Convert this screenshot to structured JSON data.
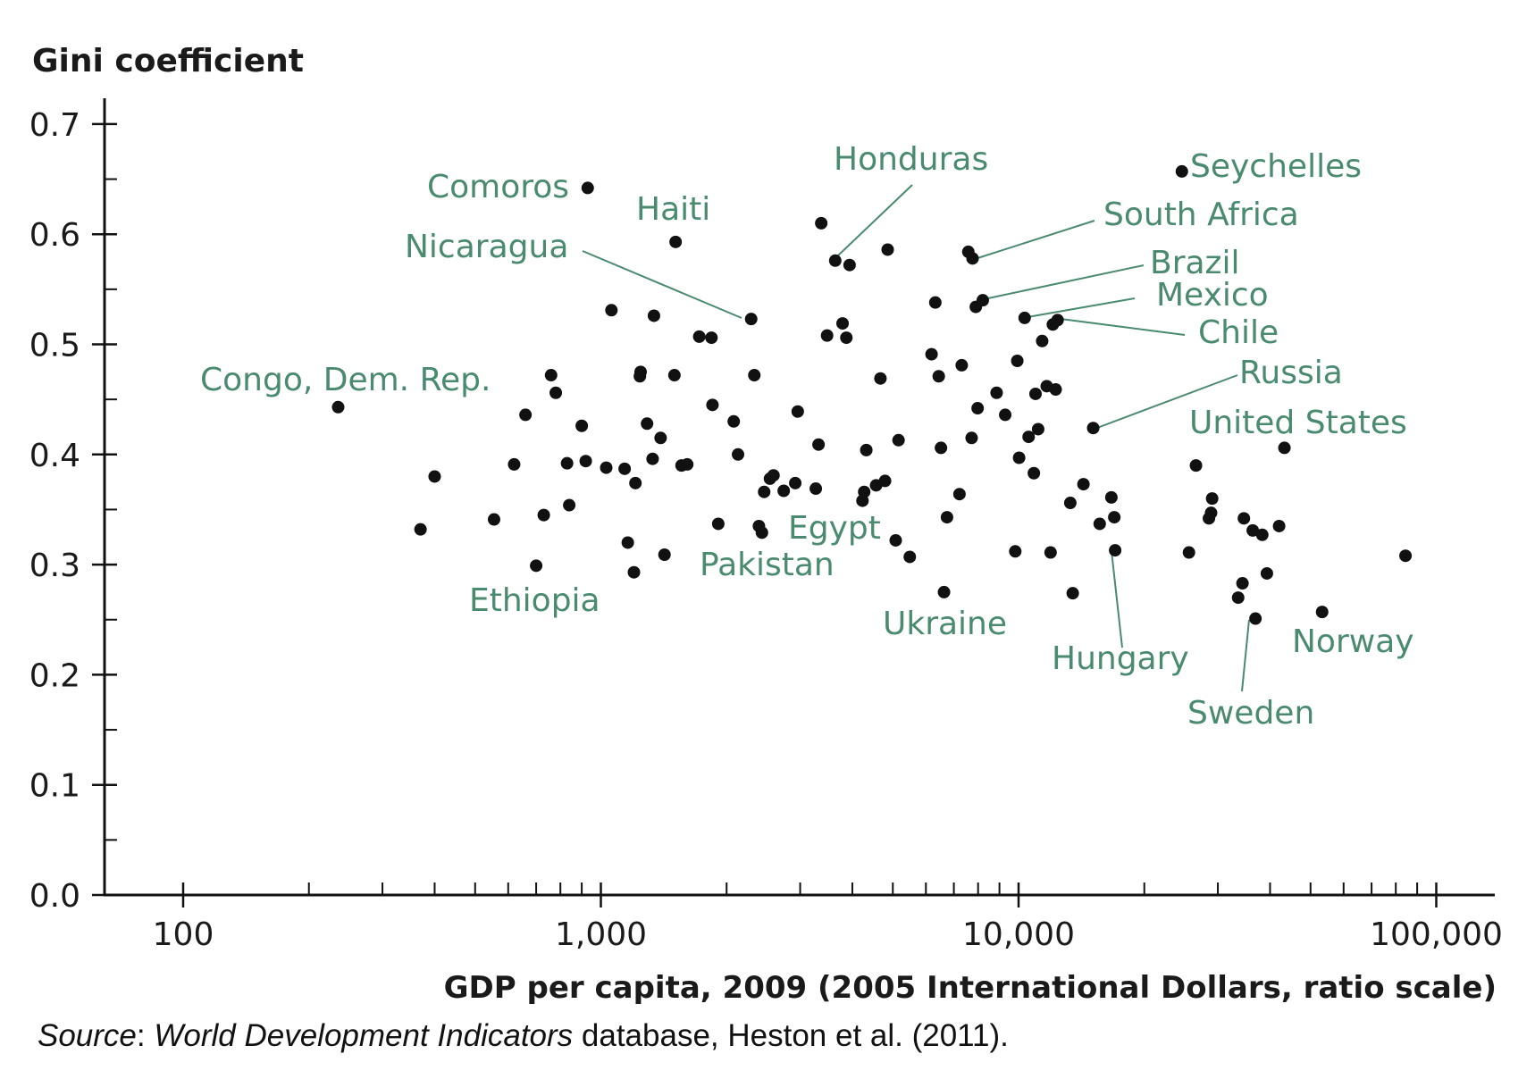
{
  "chart_data": {
    "type": "scatter",
    "title": "",
    "ylabel": "Gini coefficient",
    "xlabel": "GDP per capita, 2009 (2005 International Dollars, ratio scale)",
    "x_scale": "log",
    "xlim": [
      65,
      135000
    ],
    "ylim": [
      0,
      0.72
    ],
    "grid": false,
    "legend": "none",
    "x_ticks": [
      100,
      1000,
      10000,
      100000
    ],
    "x_tick_labels": [
      "100",
      "1,000",
      "10,000",
      "100,000"
    ],
    "y_ticks": [
      0.0,
      0.1,
      0.2,
      0.3,
      0.4,
      0.5,
      0.6,
      0.7
    ],
    "y_tick_labels": [
      "0.0",
      "0.1",
      "0.2",
      "0.3",
      "0.4",
      "0.5",
      "0.6",
      "0.7"
    ],
    "colors": {
      "point": "#111111",
      "label": "#4a8a6e",
      "axis": "#111111"
    },
    "points": [
      [
        235,
        0.443
      ],
      [
        370,
        0.332
      ],
      [
        400,
        0.38
      ],
      [
        555,
        0.341
      ],
      [
        620,
        0.391
      ],
      [
        660,
        0.436
      ],
      [
        700,
        0.299
      ],
      [
        730,
        0.345
      ],
      [
        760,
        0.472
      ],
      [
        780,
        0.456
      ],
      [
        830,
        0.392
      ],
      [
        840,
        0.354
      ],
      [
        900,
        0.426
      ],
      [
        920,
        0.394
      ],
      [
        930,
        0.642
      ],
      [
        1030,
        0.388
      ],
      [
        1060,
        0.531
      ],
      [
        1140,
        0.387
      ],
      [
        1160,
        0.32
      ],
      [
        1200,
        0.293
      ],
      [
        1210,
        0.374
      ],
      [
        1240,
        0.471
      ],
      [
        1245,
        0.475
      ],
      [
        1290,
        0.428
      ],
      [
        1330,
        0.396
      ],
      [
        1340,
        0.526
      ],
      [
        1390,
        0.415
      ],
      [
        1420,
        0.309
      ],
      [
        1500,
        0.472
      ],
      [
        1510,
        0.593
      ],
      [
        1560,
        0.39
      ],
      [
        1610,
        0.391
      ],
      [
        1720,
        0.507
      ],
      [
        1840,
        0.506
      ],
      [
        1850,
        0.445
      ],
      [
        1910,
        0.337
      ],
      [
        2080,
        0.43
      ],
      [
        2130,
        0.4
      ],
      [
        2290,
        0.523
      ],
      [
        2330,
        0.472
      ],
      [
        2390,
        0.335
      ],
      [
        2430,
        0.329
      ],
      [
        2460,
        0.366
      ],
      [
        2540,
        0.378
      ],
      [
        2590,
        0.381
      ],
      [
        2740,
        0.367
      ],
      [
        2920,
        0.374
      ],
      [
        2960,
        0.439
      ],
      [
        3270,
        0.369
      ],
      [
        3320,
        0.409
      ],
      [
        3370,
        0.61
      ],
      [
        3480,
        0.508
      ],
      [
        3640,
        0.576
      ],
      [
        3790,
        0.519
      ],
      [
        3870,
        0.506
      ],
      [
        3940,
        0.572
      ],
      [
        4230,
        0.358
      ],
      [
        4270,
        0.366
      ],
      [
        4320,
        0.404
      ],
      [
        4560,
        0.372
      ],
      [
        4670,
        0.469
      ],
      [
        4790,
        0.376
      ],
      [
        4860,
        0.586
      ],
      [
        5080,
        0.322
      ],
      [
        5160,
        0.413
      ],
      [
        5490,
        0.307
      ],
      [
        6190,
        0.491
      ],
      [
        6320,
        0.538
      ],
      [
        6440,
        0.471
      ],
      [
        6520,
        0.406
      ],
      [
        6630,
        0.275
      ],
      [
        6740,
        0.343
      ],
      [
        7220,
        0.364
      ],
      [
        7310,
        0.481
      ],
      [
        7580,
        0.584
      ],
      [
        7720,
        0.415
      ],
      [
        7760,
        0.578
      ],
      [
        7900,
        0.534
      ],
      [
        7980,
        0.442
      ],
      [
        8210,
        0.54
      ],
      [
        8860,
        0.456
      ],
      [
        9290,
        0.436
      ],
      [
        9820,
        0.312
      ],
      [
        9930,
        0.485
      ],
      [
        10030,
        0.397
      ],
      [
        10340,
        0.524
      ],
      [
        10570,
        0.416
      ],
      [
        10880,
        0.383
      ],
      [
        10980,
        0.455
      ],
      [
        11140,
        0.423
      ],
      [
        11390,
        0.503
      ],
      [
        11680,
        0.462
      ],
      [
        11930,
        0.311
      ],
      [
        12080,
        0.518
      ],
      [
        12270,
        0.459
      ],
      [
        12400,
        0.522
      ],
      [
        13300,
        0.356
      ],
      [
        13480,
        0.274
      ],
      [
        14300,
        0.373
      ],
      [
        15090,
        0.424
      ],
      [
        15640,
        0.337
      ],
      [
        16680,
        0.361
      ],
      [
        16950,
        0.343
      ],
      [
        17030,
        0.313
      ],
      [
        25580,
        0.311
      ],
      [
        26590,
        0.39
      ],
      [
        28560,
        0.342
      ],
      [
        28900,
        0.347
      ],
      [
        29070,
        0.36
      ],
      [
        33550,
        0.27
      ],
      [
        34360,
        0.283
      ],
      [
        34630,
        0.342
      ],
      [
        36360,
        0.331
      ],
      [
        36910,
        0.251
      ],
      [
        38320,
        0.327
      ],
      [
        39310,
        0.292
      ],
      [
        42050,
        0.335
      ],
      [
        43300,
        0.406
      ],
      [
        53300,
        0.257
      ],
      [
        84400,
        0.308
      ],
      [
        24600,
        0.657
      ]
    ],
    "annotations": [
      {
        "label": "Comoros",
        "x": 930,
        "y": 0.642
      },
      {
        "label": "Haiti",
        "x": 1510,
        "y": 0.593
      },
      {
        "label": "Nicaragua",
        "x": 2290,
        "y": 0.523
      },
      {
        "label": "Honduras",
        "x": 3640,
        "y": 0.576
      },
      {
        "label": "Seychelles",
        "x": 24600,
        "y": 0.657
      },
      {
        "label": "South Africa",
        "x": 7760,
        "y": 0.578
      },
      {
        "label": "Brazil",
        "x": 8210,
        "y": 0.54
      },
      {
        "label": "Mexico",
        "x": 10340,
        "y": 0.524
      },
      {
        "label": "Chile",
        "x": 12400,
        "y": 0.522
      },
      {
        "label": "Russia",
        "x": 15090,
        "y": 0.424
      },
      {
        "label": "United States",
        "x": 43300,
        "y": 0.406
      },
      {
        "label": "Congo, Dem. Rep.",
        "x": 235,
        "y": 0.443
      },
      {
        "label": "Egypt",
        "x": 4790,
        "y": 0.376
      },
      {
        "label": "Pakistan",
        "x": 2430,
        "y": 0.329
      },
      {
        "label": "Ethiopia",
        "x": 700,
        "y": 0.299
      },
      {
        "label": "Ukraine",
        "x": 6630,
        "y": 0.275
      },
      {
        "label": "Hungary",
        "x": 17030,
        "y": 0.313
      },
      {
        "label": "Norway",
        "x": 84400,
        "y": 0.308
      },
      {
        "label": "Sweden",
        "x": 36910,
        "y": 0.251
      }
    ]
  },
  "source": {
    "label": "Source",
    "sep": ": ",
    "database_title": "World Development Indicators",
    "rest": " database, Heston et al. (2011)."
  }
}
